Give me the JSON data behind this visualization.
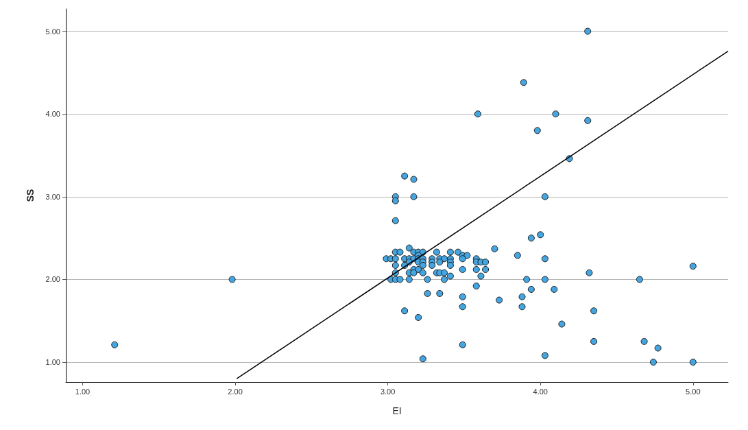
{
  "chart_data": {
    "type": "scatter",
    "xlabel": "EI",
    "ylabel": "SS",
    "xlim": [
      0.89,
      5.23
    ],
    "ylim": [
      0.76,
      5.27
    ],
    "xticks": [
      {
        "value": 1,
        "label": "1.00"
      },
      {
        "value": 2,
        "label": "2.00"
      },
      {
        "value": 3,
        "label": "3.00"
      },
      {
        "value": 4,
        "label": "4.00"
      },
      {
        "value": 5,
        "label": "5.00"
      }
    ],
    "yticks": [
      {
        "value": 1,
        "label": "1.00"
      },
      {
        "value": 2,
        "label": "2.00"
      },
      {
        "value": 3,
        "label": "3.00"
      },
      {
        "value": 4,
        "label": "4.00"
      },
      {
        "value": 5,
        "label": "5.00"
      }
    ],
    "grid": "y",
    "marker": "circle",
    "series": [
      {
        "color": "#45a5e0",
        "x": [
          4.31,
          3.89,
          3.59,
          4.1,
          4.31,
          3.98,
          4.19,
          1.21,
          1.98,
          3.11,
          3.17,
          3.05,
          3.05,
          3.17,
          4.03,
          3.05,
          3.94,
          4.0,
          3.7,
          3.85,
          4.03,
          5.0,
          4.32,
          4.65,
          4.03,
          3.91,
          3.94,
          4.09,
          3.88,
          3.88,
          3.73,
          3.49,
          3.49,
          3.26,
          3.34,
          3.58,
          3.11,
          3.2,
          4.35,
          4.14,
          4.35,
          4.68,
          4.77,
          4.74,
          5.0,
          3.49,
          4.03,
          3.23,
          3.14,
          3.05,
          3.08,
          3.17,
          3.2,
          3.23,
          3.32,
          3.41,
          3.46,
          3.2,
          3.49,
          3.52,
          2.99,
          3.02,
          3.05,
          3.11,
          3.14,
          3.17,
          3.2,
          3.23,
          3.29,
          3.34,
          3.37,
          3.41,
          3.49,
          3.58,
          3.14,
          3.2,
          3.23,
          3.29,
          3.34,
          3.41,
          3.58,
          3.61,
          3.64,
          3.05,
          3.11,
          3.23,
          3.29,
          3.41,
          3.17,
          3.2,
          3.49,
          3.58,
          3.64,
          3.05,
          3.14,
          3.17,
          3.23,
          3.32,
          3.34,
          3.37,
          3.41,
          3.61,
          3.02,
          3.05,
          3.08,
          3.14,
          3.26,
          3.37
        ],
        "values": [
          5.0,
          4.38,
          4.0,
          4.0,
          3.92,
          3.8,
          3.46,
          1.21,
          2.0,
          3.25,
          3.21,
          3.0,
          2.95,
          3.0,
          3.0,
          2.71,
          2.5,
          2.54,
          2.37,
          2.29,
          2.25,
          2.16,
          2.08,
          2.0,
          2.0,
          2.0,
          1.88,
          1.88,
          1.79,
          1.67,
          1.75,
          1.79,
          1.67,
          1.83,
          1.83,
          1.92,
          1.62,
          1.54,
          1.62,
          1.46,
          1.25,
          1.25,
          1.17,
          1.0,
          1.0,
          1.21,
          1.08,
          1.04,
          2.38,
          2.33,
          2.33,
          2.33,
          2.33,
          2.33,
          2.33,
          2.33,
          2.33,
          2.29,
          2.29,
          2.29,
          2.25,
          2.25,
          2.25,
          2.25,
          2.25,
          2.25,
          2.25,
          2.25,
          2.25,
          2.25,
          2.25,
          2.25,
          2.25,
          2.25,
          2.21,
          2.21,
          2.21,
          2.21,
          2.21,
          2.21,
          2.21,
          2.21,
          2.21,
          2.17,
          2.17,
          2.17,
          2.17,
          2.17,
          2.12,
          2.12,
          2.12,
          2.12,
          2.12,
          2.08,
          2.08,
          2.08,
          2.08,
          2.08,
          2.08,
          2.08,
          2.04,
          2.04,
          2.0,
          2.0,
          2.0,
          2.0,
          2.0,
          2.0
        ]
      },
      {
        "type": "line",
        "color": "#000000",
        "marker": "none",
        "x": [
          2.01,
          5.23
        ],
        "values": [
          0.8,
          4.76
        ]
      }
    ]
  }
}
